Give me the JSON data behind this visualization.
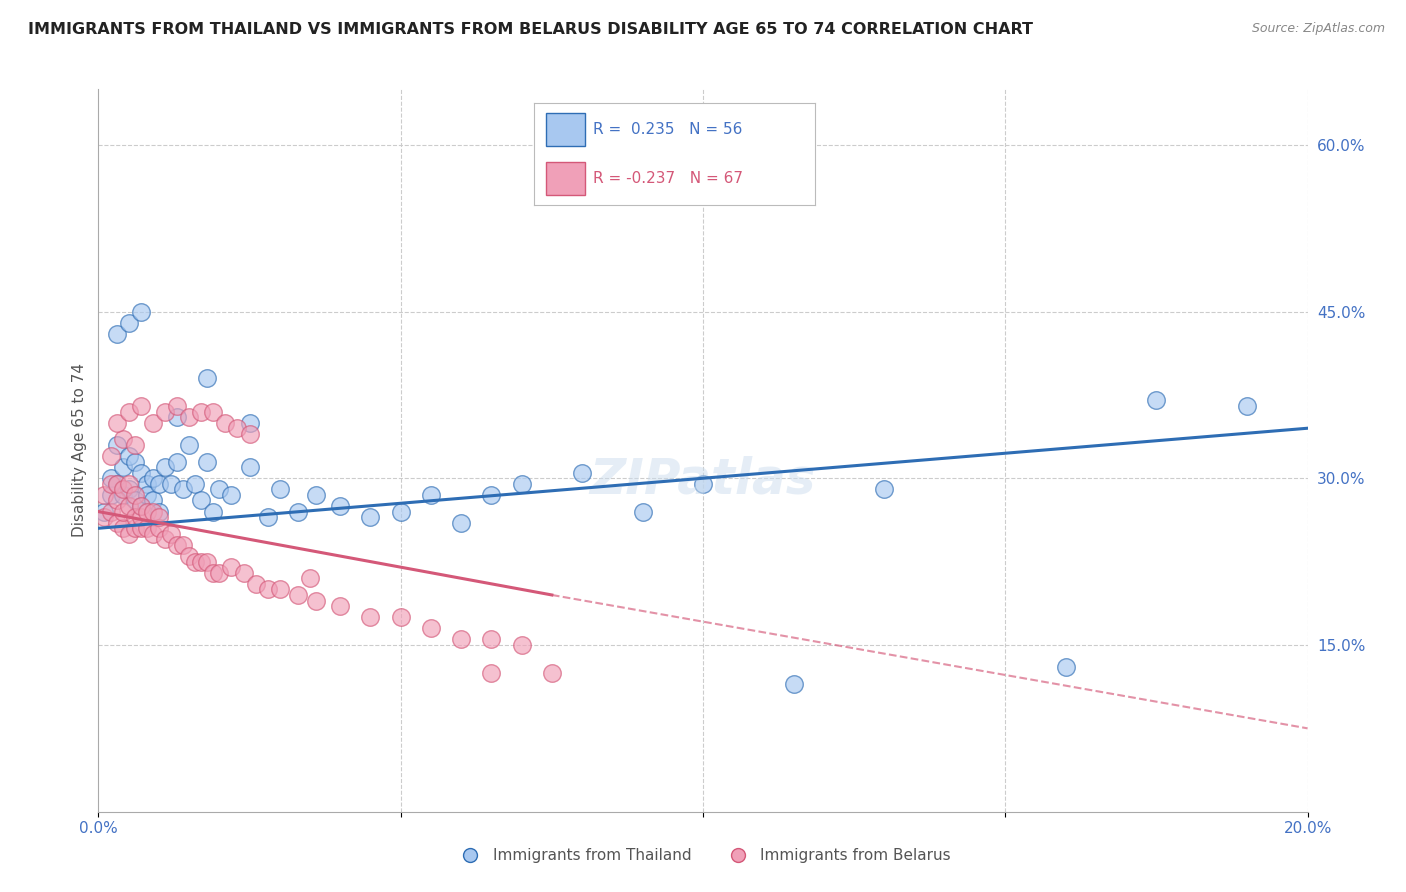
{
  "title": "IMMIGRANTS FROM THAILAND VS IMMIGRANTS FROM BELARUS DISABILITY AGE 65 TO 74 CORRELATION CHART",
  "source": "Source: ZipAtlas.com",
  "ylabel": "Disability Age 65 to 74",
  "xlim": [
    0.0,
    0.2
  ],
  "ylim": [
    0.0,
    0.65
  ],
  "yticks_right": [
    0.0,
    0.15,
    0.3,
    0.45,
    0.6
  ],
  "yticklabels_right": [
    "",
    "15.0%",
    "30.0%",
    "45.0%",
    "60.0%"
  ],
  "legend_label1": "Immigrants from Thailand",
  "legend_label2": "Immigrants from Belarus",
  "color_thailand": "#A8C8F0",
  "color_belarus": "#F0A0B8",
  "color_trend_thailand": "#2E6DB4",
  "color_trend_belarus": "#D45878",
  "background_color": "#FFFFFF",
  "grid_color": "#CCCCCC",
  "title_color": "#222222",
  "axis_label_color": "#555555",
  "right_axis_color": "#4472C4",
  "thailand_trend_x0": 0.0,
  "thailand_trend_y0": 0.255,
  "thailand_trend_x1": 0.2,
  "thailand_trend_y1": 0.345,
  "belarus_trend_x0": 0.0,
  "belarus_trend_y0": 0.27,
  "belarus_trend_solid_x1": 0.075,
  "belarus_trend_solid_y1": 0.195,
  "belarus_trend_dash_x1": 0.2,
  "belarus_trend_dash_y1": 0.075,
  "thailand_x": [
    0.001,
    0.002,
    0.002,
    0.003,
    0.003,
    0.004,
    0.004,
    0.005,
    0.005,
    0.006,
    0.006,
    0.007,
    0.007,
    0.008,
    0.008,
    0.009,
    0.009,
    0.01,
    0.01,
    0.011,
    0.012,
    0.013,
    0.014,
    0.015,
    0.016,
    0.017,
    0.018,
    0.019,
    0.02,
    0.022,
    0.025,
    0.028,
    0.03,
    0.033,
    0.036,
    0.04,
    0.045,
    0.05,
    0.055,
    0.06,
    0.065,
    0.07,
    0.08,
    0.09,
    0.1,
    0.115,
    0.13,
    0.16,
    0.175,
    0.19,
    0.003,
    0.005,
    0.007,
    0.013,
    0.018,
    0.025
  ],
  "thailand_y": [
    0.27,
    0.285,
    0.3,
    0.295,
    0.33,
    0.285,
    0.31,
    0.29,
    0.32,
    0.28,
    0.315,
    0.275,
    0.305,
    0.295,
    0.285,
    0.3,
    0.28,
    0.295,
    0.27,
    0.31,
    0.295,
    0.315,
    0.29,
    0.33,
    0.295,
    0.28,
    0.315,
    0.27,
    0.29,
    0.285,
    0.31,
    0.265,
    0.29,
    0.27,
    0.285,
    0.275,
    0.265,
    0.27,
    0.285,
    0.26,
    0.285,
    0.295,
    0.305,
    0.27,
    0.295,
    0.115,
    0.29,
    0.13,
    0.37,
    0.365,
    0.43,
    0.44,
    0.45,
    0.355,
    0.39,
    0.35
  ],
  "belarus_x": [
    0.001,
    0.001,
    0.002,
    0.002,
    0.003,
    0.003,
    0.003,
    0.004,
    0.004,
    0.004,
    0.005,
    0.005,
    0.005,
    0.006,
    0.006,
    0.006,
    0.007,
    0.007,
    0.007,
    0.008,
    0.008,
    0.009,
    0.009,
    0.01,
    0.01,
    0.011,
    0.012,
    0.013,
    0.014,
    0.015,
    0.016,
    0.017,
    0.018,
    0.019,
    0.02,
    0.022,
    0.024,
    0.026,
    0.028,
    0.03,
    0.033,
    0.036,
    0.04,
    0.045,
    0.05,
    0.055,
    0.06,
    0.065,
    0.07,
    0.075,
    0.002,
    0.004,
    0.006,
    0.003,
    0.005,
    0.007,
    0.009,
    0.011,
    0.013,
    0.015,
    0.017,
    0.019,
    0.021,
    0.023,
    0.025,
    0.035,
    0.065
  ],
  "belarus_y": [
    0.265,
    0.285,
    0.27,
    0.295,
    0.26,
    0.28,
    0.295,
    0.255,
    0.27,
    0.29,
    0.25,
    0.275,
    0.295,
    0.255,
    0.265,
    0.285,
    0.255,
    0.265,
    0.275,
    0.255,
    0.27,
    0.25,
    0.27,
    0.255,
    0.265,
    0.245,
    0.25,
    0.24,
    0.24,
    0.23,
    0.225,
    0.225,
    0.225,
    0.215,
    0.215,
    0.22,
    0.215,
    0.205,
    0.2,
    0.2,
    0.195,
    0.19,
    0.185,
    0.175,
    0.175,
    0.165,
    0.155,
    0.155,
    0.15,
    0.125,
    0.32,
    0.335,
    0.33,
    0.35,
    0.36,
    0.365,
    0.35,
    0.36,
    0.365,
    0.355,
    0.36,
    0.36,
    0.35,
    0.345,
    0.34,
    0.21,
    0.125
  ]
}
